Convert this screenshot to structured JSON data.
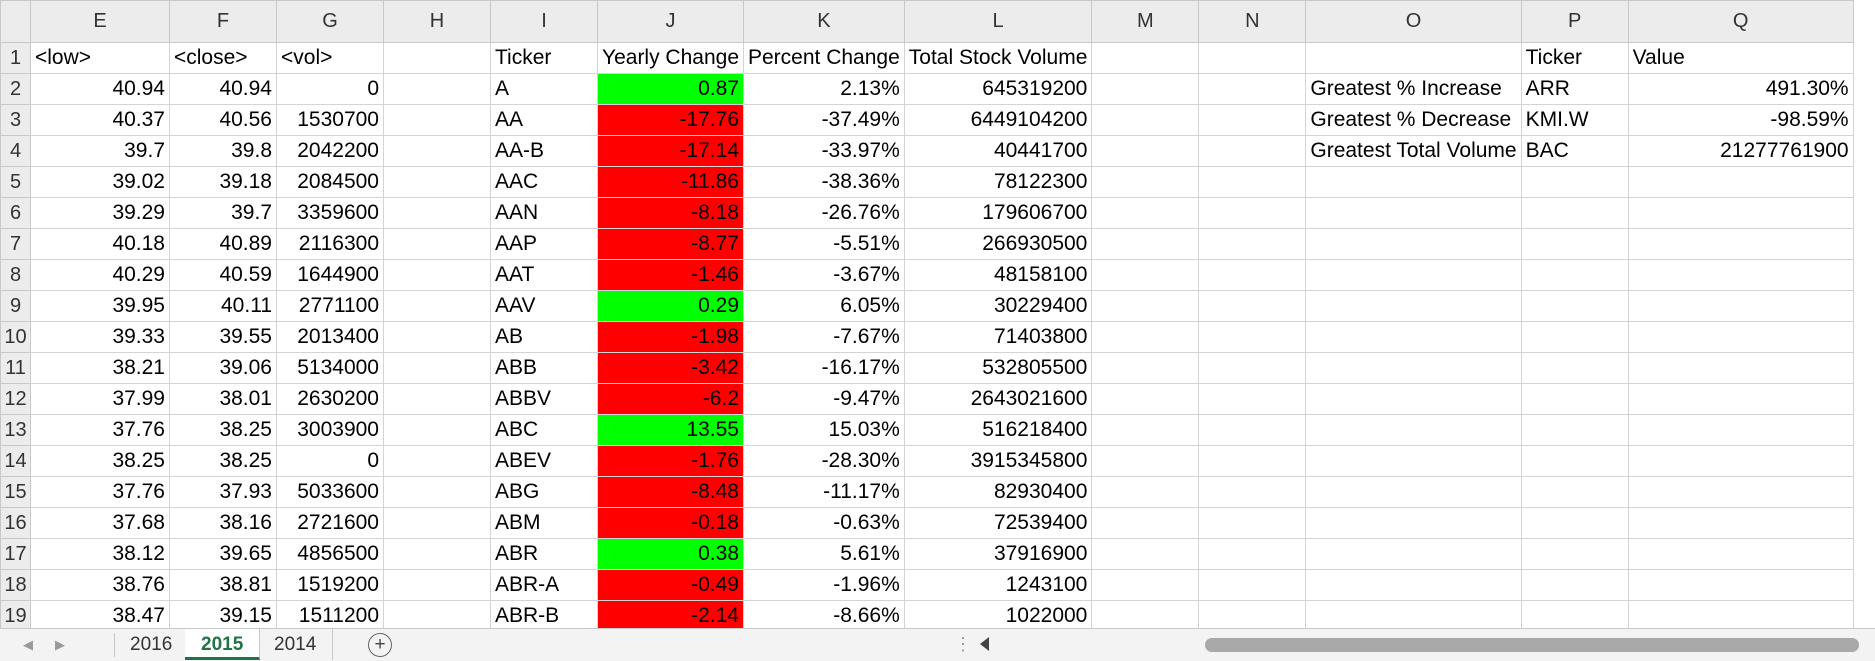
{
  "columns": [
    "E",
    "F",
    "G",
    "H",
    "I",
    "J",
    "K",
    "L",
    "M",
    "N",
    "O",
    "P",
    "Q"
  ],
  "header_row": {
    "E": "<low>",
    "F": "<close>",
    "G": "<vol>",
    "H": "",
    "I": "Ticker",
    "J": "Yearly Change",
    "K": "Percent Change",
    "L": "Total Stock Volume",
    "M": "",
    "N": "",
    "O": "",
    "P": "Ticker",
    "Q": "Value"
  },
  "rows": [
    {
      "n": "2",
      "low": "40.94",
      "close": "40.94",
      "vol": "0",
      "ticker": "A",
      "yearly": "0.87",
      "yearly_status": "pos",
      "pct": "2.13%",
      "total": "645319200",
      "O": "Greatest % Increase",
      "P": "ARR",
      "Q": "491.30%"
    },
    {
      "n": "3",
      "low": "40.37",
      "close": "40.56",
      "vol": "1530700",
      "ticker": "AA",
      "yearly": "-17.76",
      "yearly_status": "neg",
      "pct": "-37.49%",
      "total": "6449104200",
      "O": "Greatest % Decrease",
      "P": "KMI.W",
      "Q": "-98.59%"
    },
    {
      "n": "4",
      "low": "39.7",
      "close": "39.8",
      "vol": "2042200",
      "ticker": "AA-B",
      "yearly": "-17.14",
      "yearly_status": "neg",
      "pct": "-33.97%",
      "total": "40441700",
      "O": "Greatest Total Volume",
      "P": "BAC",
      "Q": "21277761900"
    },
    {
      "n": "5",
      "low": "39.02",
      "close": "39.18",
      "vol": "2084500",
      "ticker": "AAC",
      "yearly": "-11.86",
      "yearly_status": "neg",
      "pct": "-38.36%",
      "total": "78122300",
      "O": "",
      "P": "",
      "Q": ""
    },
    {
      "n": "6",
      "low": "39.29",
      "close": "39.7",
      "vol": "3359600",
      "ticker": "AAN",
      "yearly": "-8.18",
      "yearly_status": "neg",
      "pct": "-26.76%",
      "total": "179606700",
      "O": "",
      "P": "",
      "Q": ""
    },
    {
      "n": "7",
      "low": "40.18",
      "close": "40.89",
      "vol": "2116300",
      "ticker": "AAP",
      "yearly": "-8.77",
      "yearly_status": "neg",
      "pct": "-5.51%",
      "total": "266930500",
      "O": "",
      "P": "",
      "Q": ""
    },
    {
      "n": "8",
      "low": "40.29",
      "close": "40.59",
      "vol": "1644900",
      "ticker": "AAT",
      "yearly": "-1.46",
      "yearly_status": "neg",
      "pct": "-3.67%",
      "total": "48158100",
      "O": "",
      "P": "",
      "Q": ""
    },
    {
      "n": "9",
      "low": "39.95",
      "close": "40.11",
      "vol": "2771100",
      "ticker": "AAV",
      "yearly": "0.29",
      "yearly_status": "pos",
      "pct": "6.05%",
      "total": "30229400",
      "O": "",
      "P": "",
      "Q": ""
    },
    {
      "n": "10",
      "low": "39.33",
      "close": "39.55",
      "vol": "2013400",
      "ticker": "AB",
      "yearly": "-1.98",
      "yearly_status": "neg",
      "pct": "-7.67%",
      "total": "71403800",
      "O": "",
      "P": "",
      "Q": ""
    },
    {
      "n": "11",
      "low": "38.21",
      "close": "39.06",
      "vol": "5134000",
      "ticker": "ABB",
      "yearly": "-3.42",
      "yearly_status": "neg",
      "pct": "-16.17%",
      "total": "532805500",
      "O": "",
      "P": "",
      "Q": ""
    },
    {
      "n": "12",
      "low": "37.99",
      "close": "38.01",
      "vol": "2630200",
      "ticker": "ABBV",
      "yearly": "-6.2",
      "yearly_status": "neg",
      "pct": "-9.47%",
      "total": "2643021600",
      "O": "",
      "P": "",
      "Q": ""
    },
    {
      "n": "13",
      "low": "37.76",
      "close": "38.25",
      "vol": "3003900",
      "ticker": "ABC",
      "yearly": "13.55",
      "yearly_status": "pos",
      "pct": "15.03%",
      "total": "516218400",
      "O": "",
      "P": "",
      "Q": ""
    },
    {
      "n": "14",
      "low": "38.25",
      "close": "38.25",
      "vol": "0",
      "ticker": "ABEV",
      "yearly": "-1.76",
      "yearly_status": "neg",
      "pct": "-28.30%",
      "total": "3915345800",
      "O": "",
      "P": "",
      "Q": ""
    },
    {
      "n": "15",
      "low": "37.76",
      "close": "37.93",
      "vol": "5033600",
      "ticker": "ABG",
      "yearly": "-8.48",
      "yearly_status": "neg",
      "pct": "-11.17%",
      "total": "82930400",
      "O": "",
      "P": "",
      "Q": ""
    },
    {
      "n": "16",
      "low": "37.68",
      "close": "38.16",
      "vol": "2721600",
      "ticker": "ABM",
      "yearly": "-0.18",
      "yearly_status": "neg",
      "pct": "-0.63%",
      "total": "72539400",
      "O": "",
      "P": "",
      "Q": ""
    },
    {
      "n": "17",
      "low": "38.12",
      "close": "39.65",
      "vol": "4856500",
      "ticker": "ABR",
      "yearly": "0.38",
      "yearly_status": "pos",
      "pct": "5.61%",
      "total": "37916900",
      "O": "",
      "P": "",
      "Q": ""
    },
    {
      "n": "18",
      "low": "38.76",
      "close": "38.81",
      "vol": "1519200",
      "ticker": "ABR-A",
      "yearly": "-0.49",
      "yearly_status": "neg",
      "pct": "-1.96%",
      "total": "1243100",
      "O": "",
      "P": "",
      "Q": ""
    },
    {
      "n": "19",
      "low": "38.47",
      "close": "39.15",
      "vol": "1511200",
      "ticker": "ABR-B",
      "yearly": "-2.14",
      "yearly_status": "neg",
      "pct": "-8.66%",
      "total": "1022000",
      "O": "",
      "P": "",
      "Q": ""
    }
  ],
  "colors": {
    "positive": "#00ff00",
    "negative": "#ff0000",
    "active_tab": "#217346"
  },
  "sheet_tabs": [
    {
      "label": "2016",
      "active": false
    },
    {
      "label": "2015",
      "active": true
    },
    {
      "label": "2014",
      "active": false
    }
  ],
  "add_sheet_label": "+",
  "icons": {
    "prev_sheet": "triangle-left-icon",
    "next_sheet": "triangle-right-icon",
    "add_sheet": "plus-circle-icon"
  }
}
